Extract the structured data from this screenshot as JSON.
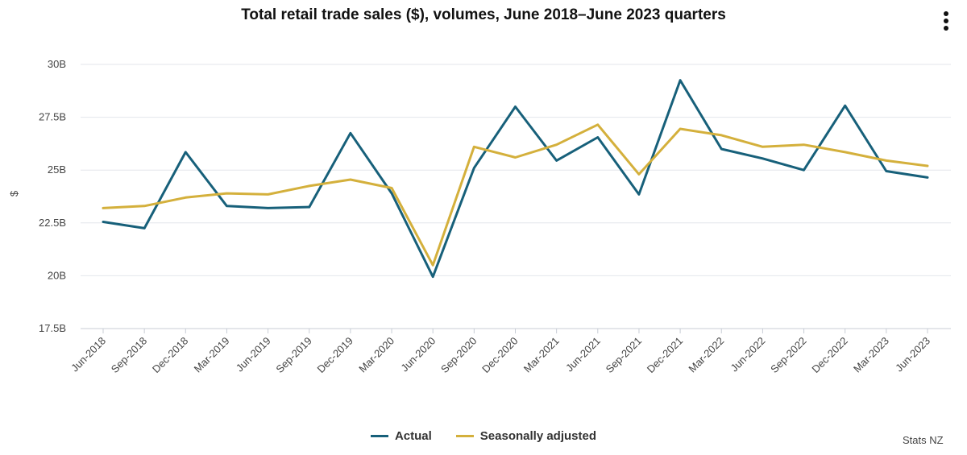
{
  "chart_data": {
    "type": "line",
    "title": "Total retail trade sales ($), volumes, June 2018–June 2023 quarters",
    "xlabel": "",
    "ylabel": "$",
    "ylim": [
      17.5,
      30
    ],
    "yticks": [
      17.5,
      20,
      22.5,
      25,
      27.5,
      30
    ],
    "ytick_labels": [
      "17.5B",
      "20B",
      "22.5B",
      "25B",
      "27.5B",
      "30B"
    ],
    "categories": [
      "Jun-2018",
      "Sep-2018",
      "Dec-2018",
      "Mar-2019",
      "Jun-2019",
      "Sep-2019",
      "Dec-2019",
      "Mar-2020",
      "Jun-2020",
      "Sep-2020",
      "Dec-2020",
      "Mar-2021",
      "Jun-2021",
      "Sep-2021",
      "Dec-2021",
      "Mar-2022",
      "Jun-2022",
      "Sep-2022",
      "Dec-2022",
      "Mar-2023",
      "Jun-2023"
    ],
    "series": [
      {
        "name": "Actual",
        "color": "#17607a",
        "values": [
          22.55,
          22.25,
          25.85,
          23.3,
          23.2,
          23.25,
          26.75,
          23.9,
          19.95,
          25.1,
          28.0,
          25.45,
          26.55,
          23.85,
          29.25,
          26.0,
          25.55,
          25.0,
          28.05,
          24.95,
          24.65
        ]
      },
      {
        "name": "Seasonally adjusted",
        "color": "#d4b03c",
        "values": [
          23.2,
          23.3,
          23.7,
          23.9,
          23.85,
          24.25,
          24.55,
          24.15,
          20.5,
          26.1,
          25.6,
          26.2,
          27.15,
          24.8,
          26.95,
          26.65,
          26.1,
          26.2,
          25.85,
          25.45,
          25.2
        ]
      }
    ],
    "grid": true,
    "legend_position": "bottom"
  },
  "menu_icon": "vertical-ellipsis-icon",
  "credit": "Stats NZ"
}
